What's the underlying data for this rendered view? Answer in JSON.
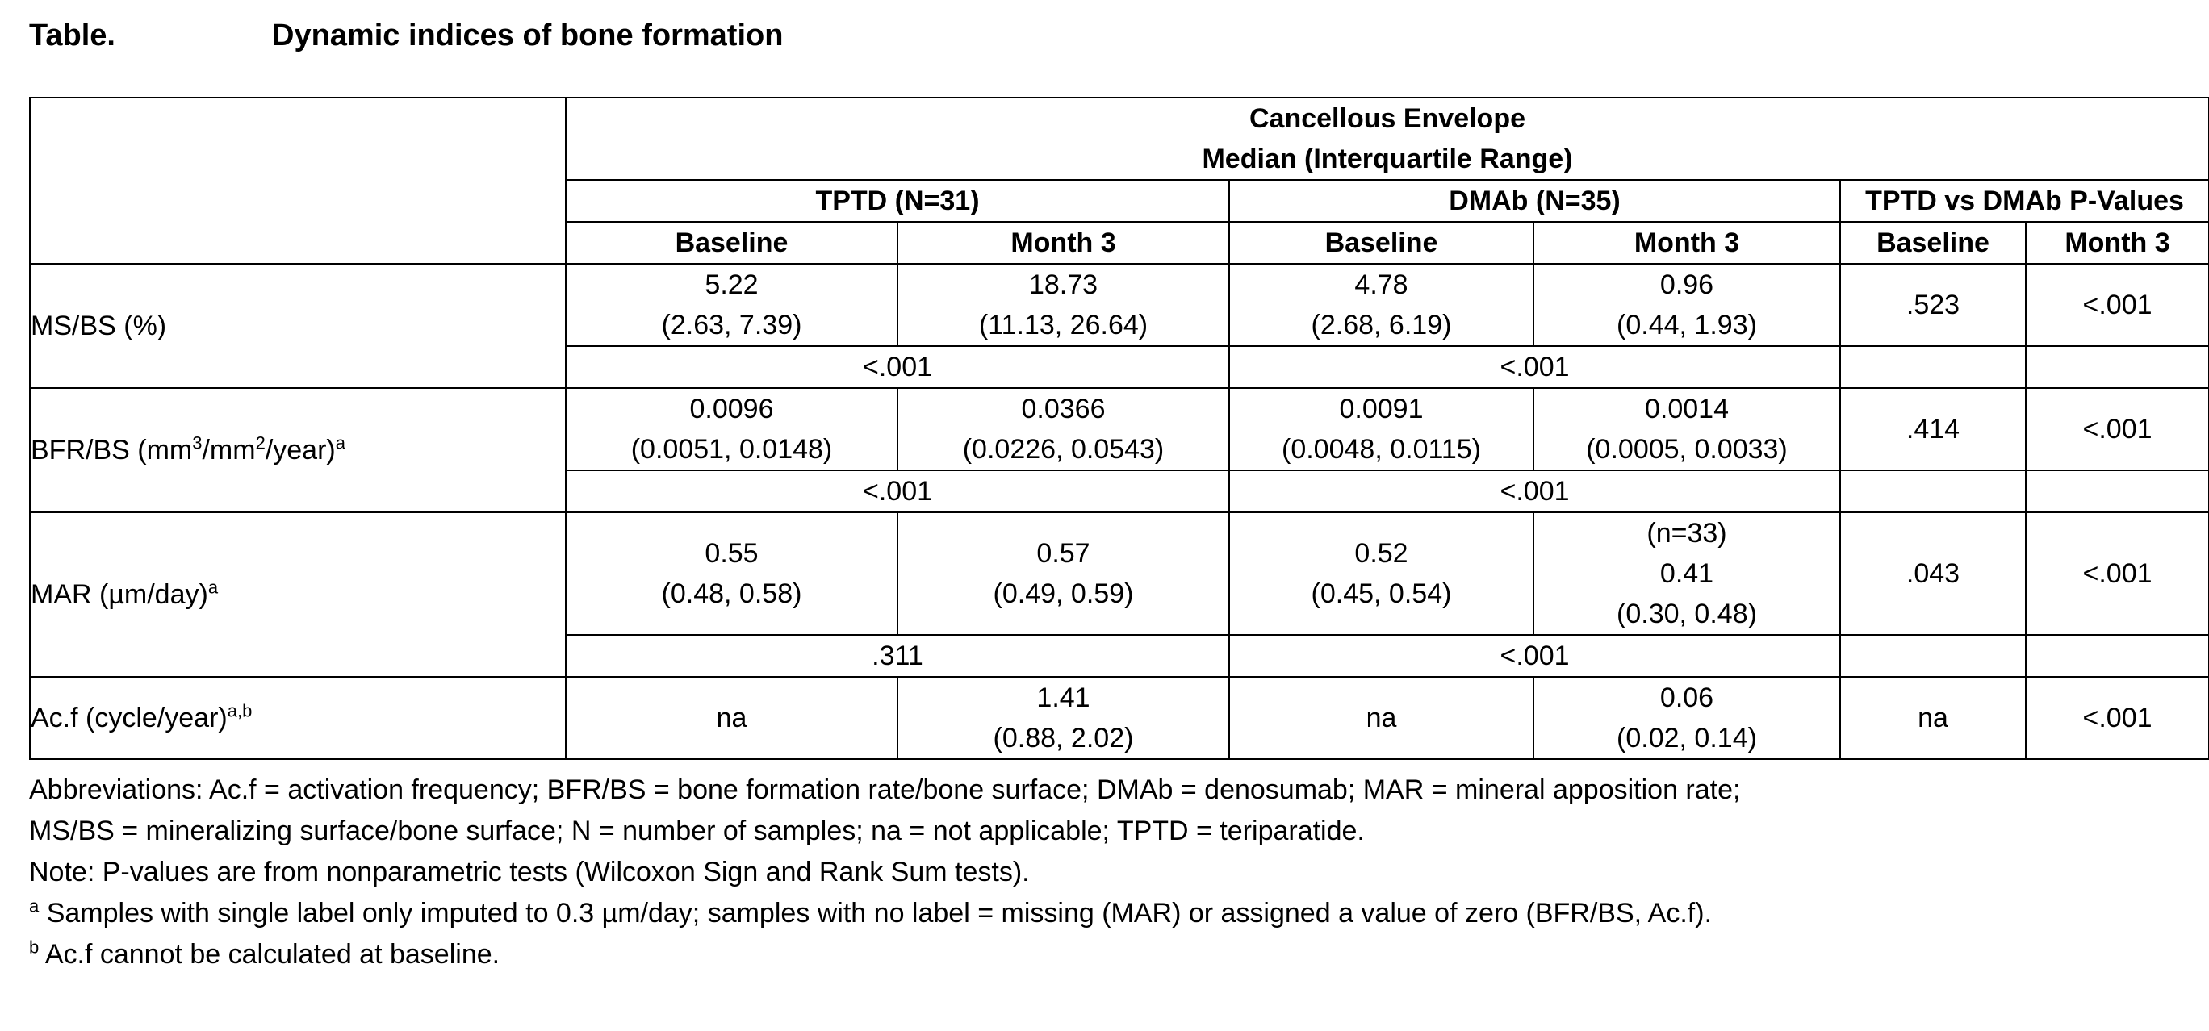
{
  "title": {
    "label": "Table.",
    "text": "Dynamic indices of bone formation"
  },
  "table": {
    "envelope_header": "Cancellous Envelope",
    "stat_header": "Median (Interquartile Range)",
    "groups": [
      "TPTD (N=31)",
      "DMAb (N=35)",
      "TPTD vs DMAb P-Values"
    ],
    "subheaders": [
      "Baseline",
      "Month 3",
      "Baseline",
      "Month 3",
      "Baseline",
      "Month 3"
    ],
    "rows": [
      {
        "label": "MS/BS (%)",
        "label_sup": "",
        "tptd_baseline": [
          "5.22",
          "(2.63, 7.39)"
        ],
        "tptd_month3": [
          "18.73",
          "(11.13, 26.64)"
        ],
        "dmab_baseline": [
          "4.78",
          "(2.68, 6.19)"
        ],
        "dmab_month3": [
          "0.96",
          "(0.44, 1.93)"
        ],
        "p_baseline": ".523",
        "p_month3": "<.001",
        "tptd_within_p": "<.001",
        "dmab_within_p": "<.001"
      },
      {
        "label": "BFR/BS (mm",
        "label_sup1": "3",
        "label_mid": "/mm",
        "label_sup2": "2",
        "label_end": "/year)",
        "label_sup": "a",
        "tptd_baseline": [
          "0.0096",
          "(0.0051, 0.0148)"
        ],
        "tptd_month3": [
          "0.0366",
          "(0.0226, 0.0543)"
        ],
        "dmab_baseline": [
          "0.0091",
          "(0.0048, 0.0115)"
        ],
        "dmab_month3": [
          "0.0014",
          "(0.0005, 0.0033)"
        ],
        "p_baseline": ".414",
        "p_month3": "<.001",
        "tptd_within_p": "<.001",
        "dmab_within_p": "<.001"
      },
      {
        "label": "MAR (µm/day)",
        "label_sup": "a",
        "tptd_baseline": [
          "0.55",
          "(0.48, 0.58)"
        ],
        "tptd_month3": [
          "0.57",
          "(0.49, 0.59)"
        ],
        "dmab_baseline": [
          "0.52",
          "(0.45, 0.54)"
        ],
        "dmab_month3": [
          "(n=33)",
          "0.41",
          "(0.30, 0.48)"
        ],
        "p_baseline": ".043",
        "p_month3": "<.001",
        "tptd_within_p": ".311",
        "dmab_within_p": "<.001"
      },
      {
        "label": "Ac.f (cycle/year)",
        "label_sup": "a,b",
        "tptd_baseline": "na",
        "tptd_month3": [
          "1.41",
          "(0.88, 2.02)"
        ],
        "dmab_baseline": "na",
        "dmab_month3": [
          "0.06",
          "(0.02, 0.14)"
        ],
        "p_baseline": "na",
        "p_month3": "<.001"
      }
    ]
  },
  "notes": {
    "abbrev_1": "Abbreviations: Ac.f = activation frequency; BFR/BS = bone formation rate/bone surface; DMAb = denosumab; MAR = mineral apposition rate;",
    "abbrev_2": "MS/BS = mineralizing surface/bone surface; N = number of samples; na = not applicable; TPTD = teriparatide.",
    "note": "Note: P-values are from nonparametric tests (Wilcoxon Sign and Rank Sum tests).",
    "footnote_a_mark": "a",
    "footnote_a": " Samples with single label only imputed to 0.3 µm/day; samples with no label = missing (MAR) or assigned a value of zero (BFR/BS, Ac.f).",
    "footnote_b_mark": "b",
    "footnote_b": " Ac.f cannot be calculated at baseline."
  }
}
